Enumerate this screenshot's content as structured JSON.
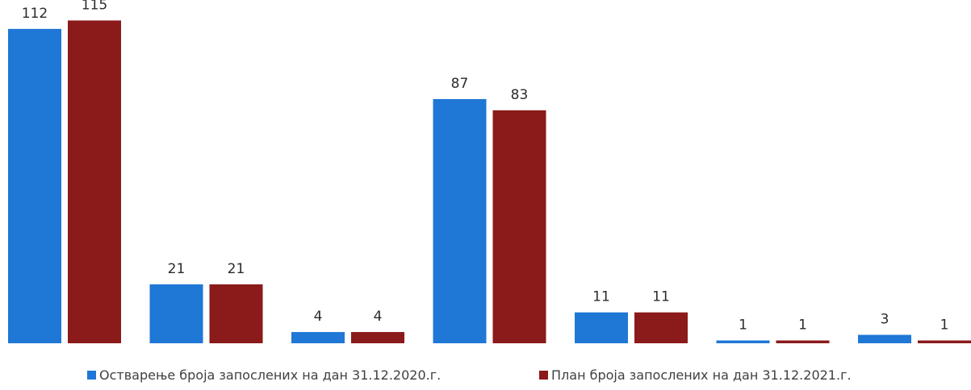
{
  "chart_data": {
    "type": "bar",
    "categories": [
      "",
      "",
      "",
      "",
      "",
      "",
      ""
    ],
    "series": [
      {
        "name": "Остварење броја запослених на дан  31.12.2020.г.",
        "color": "#1f77d6",
        "values": [
          112,
          21,
          4,
          87,
          11,
          1,
          3
        ]
      },
      {
        "name": "План броја запослених на дан 31.12.2021.г.",
        "color": "#8b1a1a",
        "values": [
          115,
          21,
          4,
          83,
          11,
          1,
          1
        ]
      }
    ],
    "ylim": [
      0,
      120
    ],
    "grid": false,
    "legend_position": "bottom",
    "data_labels": true
  }
}
